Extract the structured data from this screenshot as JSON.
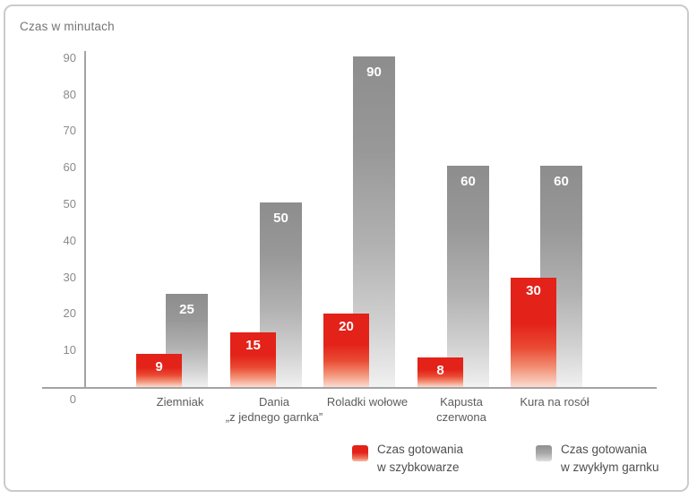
{
  "title": "Czas w minutach",
  "chart_data": {
    "type": "bar",
    "title": "Czas w minutach",
    "categories": [
      "Ziemniak",
      "Dania „z jednego garnka”",
      "Roladki wołowe",
      "Kapusta czerwona",
      "Kura na rosół"
    ],
    "category_lines": [
      [
        "Ziemniak"
      ],
      [
        "Dania",
        "„z jednego garnka”"
      ],
      [
        "Roladki wołowe"
      ],
      [
        "Kapusta",
        "czerwona"
      ],
      [
        "Kura na rosół"
      ]
    ],
    "series": [
      {
        "name": "Czas gotowania w szybkowarze",
        "color": "#e3221a",
        "values": [
          9,
          15,
          20,
          8,
          30
        ]
      },
      {
        "name": "Czas gotowania w zwykłym garnku",
        "color": "#8f8f8f",
        "values": [
          25,
          50,
          90,
          60,
          60
        ]
      }
    ],
    "xlabel": "",
    "ylabel": "Czas w minutach",
    "ylim": [
      0,
      90
    ],
    "yticks": [
      0,
      10,
      20,
      30,
      40,
      50,
      60,
      70,
      80,
      90
    ],
    "grid": false,
    "bar_value_labels": true,
    "legend_position": "bottom"
  },
  "legend": {
    "items": [
      {
        "lines": [
          "Czas gotowania",
          "w szybkowarze"
        ],
        "color": "#e3221a"
      },
      {
        "lines": [
          "Czas gotowania",
          "w zwykłym garnku"
        ],
        "color": "#8f8f8f"
      }
    ]
  }
}
